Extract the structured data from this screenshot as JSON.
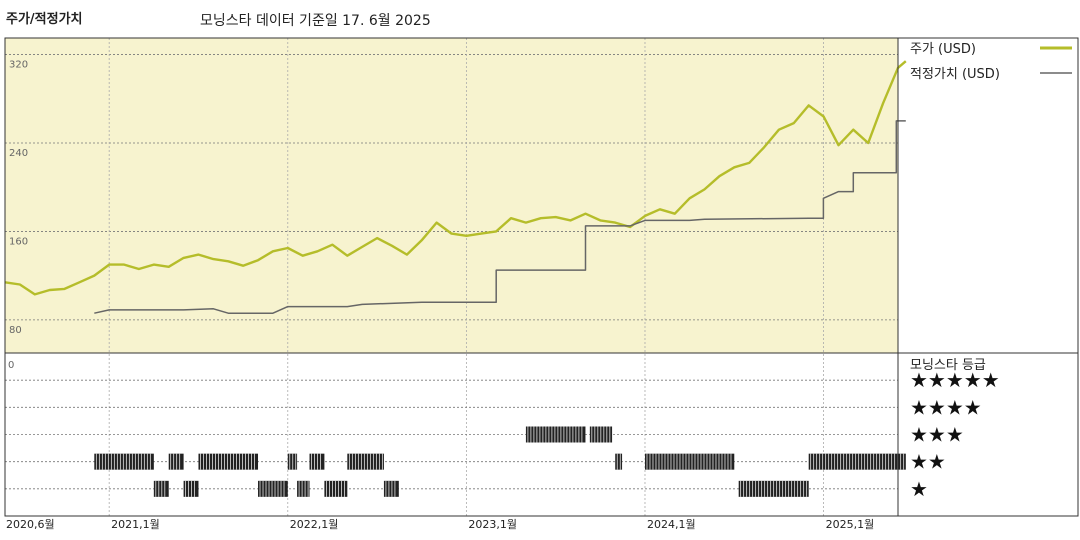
{
  "header": {
    "left_title": "주가/적정가치",
    "main_title": "모닝스타 데이터 기준일 17. 6월 2025"
  },
  "colors": {
    "price": "#b5bd2a",
    "fair_value": "#666666",
    "plot_bg": "#f7f3cf",
    "rating_bar": "#222222"
  },
  "chart_data": [
    {
      "type": "line",
      "x_start": "2020-06",
      "x_end": "2025-06",
      "xlabel": "",
      "ylabel": "",
      "ylim": [
        50,
        335
      ],
      "y_ticks": [
        80,
        160,
        240,
        320
      ],
      "x_tick_labels": [
        "2020,6월",
        "2021,1월",
        "2022,1월",
        "2023,1월",
        "2024,1월",
        "2025,1월"
      ],
      "x_tick_dates": [
        "2020-06",
        "2021-01",
        "2022-01",
        "2023-01",
        "2024-01",
        "2025-01"
      ],
      "grid": true,
      "legend": "right",
      "series": [
        {
          "name": "주가 (USD)",
          "color": "#b5bd2a",
          "points": [
            [
              "2020-06",
              114
            ],
            [
              "2020-07",
              112
            ],
            [
              "2020-08",
              103
            ],
            [
              "2020-09",
              107
            ],
            [
              "2020-10",
              108
            ],
            [
              "2020-11",
              114
            ],
            [
              "2020-12",
              120
            ],
            [
              "2021-01",
              130
            ],
            [
              "2021-02",
              130
            ],
            [
              "2021-03",
              126
            ],
            [
              "2021-04",
              130
            ],
            [
              "2021-05",
              128
            ],
            [
              "2021-06",
              136
            ],
            [
              "2021-07",
              139
            ],
            [
              "2021-08",
              135
            ],
            [
              "2021-09",
              133
            ],
            [
              "2021-10",
              129
            ],
            [
              "2021-11",
              134
            ],
            [
              "2021-12",
              142
            ],
            [
              "2022-01",
              145
            ],
            [
              "2022-02",
              138
            ],
            [
              "2022-03",
              142
            ],
            [
              "2022-04",
              148
            ],
            [
              "2022-05",
              138
            ],
            [
              "2022-06",
              146
            ],
            [
              "2022-07",
              154
            ],
            [
              "2022-08",
              147
            ],
            [
              "2022-09",
              139
            ],
            [
              "2022-10",
              152
            ],
            [
              "2022-11",
              168
            ],
            [
              "2022-12",
              158
            ],
            [
              "2023-01",
              156
            ],
            [
              "2023-02",
              158
            ],
            [
              "2023-03",
              160
            ],
            [
              "2023-04",
              172
            ],
            [
              "2023-05",
              168
            ],
            [
              "2023-06",
              172
            ],
            [
              "2023-07",
              173
            ],
            [
              "2023-08",
              170
            ],
            [
              "2023-09",
              176
            ],
            [
              "2023-10",
              170
            ],
            [
              "2023-11",
              168
            ],
            [
              "2023-12",
              164
            ],
            [
              "2024-01",
              174
            ],
            [
              "2024-02",
              180
            ],
            [
              "2024-03",
              176
            ],
            [
              "2024-04",
              190
            ],
            [
              "2024-05",
              198
            ],
            [
              "2024-06",
              210
            ],
            [
              "2024-07",
              218
            ],
            [
              "2024-08",
              222
            ],
            [
              "2024-09",
              236
            ],
            [
              "2024-10",
              252
            ],
            [
              "2024-11",
              258
            ],
            [
              "2024-12",
              274
            ],
            [
              "2025-01",
              264
            ],
            [
              "2025-02",
              238
            ],
            [
              "2025-03",
              252
            ],
            [
              "2025-04",
              240
            ],
            [
              "2025-05",
              276
            ],
            [
              "2025-06",
              308
            ],
            [
              "2025-06-17",
              314
            ]
          ]
        },
        {
          "name": "적정가치 (USD)",
          "color": "#666666",
          "points": [
            [
              "2020-12",
              86
            ],
            [
              "2021-01",
              89
            ],
            [
              "2021-06",
              89
            ],
            [
              "2021-08",
              90
            ],
            [
              "2021-09",
              86
            ],
            [
              "2021-12",
              86
            ],
            [
              "2022-01",
              92
            ],
            [
              "2022-05",
              92
            ],
            [
              "2022-06",
              94
            ],
            [
              "2022-10",
              96
            ],
            [
              "2023-03",
              125
            ],
            [
              "2023-09",
              165
            ],
            [
              "2023-12",
              165
            ],
            [
              "2024-01",
              170
            ],
            [
              "2024-04",
              170
            ],
            [
              "2024-05",
              171
            ],
            [
              "2024-12",
              172
            ],
            [
              "2024-12-31",
              190
            ],
            [
              "2025-02",
              196
            ],
            [
              "2025-03",
              213
            ],
            [
              "2025-05",
              213
            ],
            [
              "2025-05-28",
              260
            ],
            [
              "2025-06-17",
              260
            ]
          ]
        }
      ]
    },
    {
      "type": "bar",
      "title": "모닝스타 등급",
      "rating_labels": [
        "★★★★★",
        "★★★★",
        "★★★",
        "★★",
        "★"
      ],
      "rating_levels": [
        5,
        4,
        3,
        2,
        1
      ],
      "x_start": "2020-06",
      "x_end": "2025-06",
      "y_tick_label": "0",
      "segments": [
        {
          "rating": 2,
          "start": "2020-12",
          "end": "2021-04"
        },
        {
          "rating": 2,
          "start": "2021-05",
          "end": "2021-06"
        },
        {
          "rating": 1,
          "start": "2021-04",
          "end": "2021-05"
        },
        {
          "rating": 1,
          "start": "2021-06",
          "end": "2021-07"
        },
        {
          "rating": 2,
          "start": "2021-07",
          "end": "2021-11"
        },
        {
          "rating": 1,
          "start": "2021-11",
          "end": "2022-01"
        },
        {
          "rating": 2,
          "start": "2022-01",
          "end": "2022-01-20"
        },
        {
          "rating": 1,
          "start": "2022-01-20",
          "end": "2022-02-15"
        },
        {
          "rating": 2,
          "start": "2022-02-15",
          "end": "2022-03-15"
        },
        {
          "rating": 1,
          "start": "2022-03-15",
          "end": "2022-05"
        },
        {
          "rating": 2,
          "start": "2022-05",
          "end": "2022-07-15"
        },
        {
          "rating": 1,
          "start": "2022-07-15",
          "end": "2022-08-15"
        },
        {
          "rating": 3,
          "start": "2023-05",
          "end": "2023-09"
        },
        {
          "rating": 3,
          "start": "2023-09-10",
          "end": "2023-10-25"
        },
        {
          "rating": 2,
          "start": "2023-11",
          "end": "2023-11-15"
        },
        {
          "rating": 2,
          "start": "2024-01",
          "end": "2024-07"
        },
        {
          "rating": 1,
          "start": "2024-07-10",
          "end": "2024-12"
        },
        {
          "rating": 2,
          "start": "2024-12",
          "end": "2025-06-17"
        }
      ]
    }
  ]
}
